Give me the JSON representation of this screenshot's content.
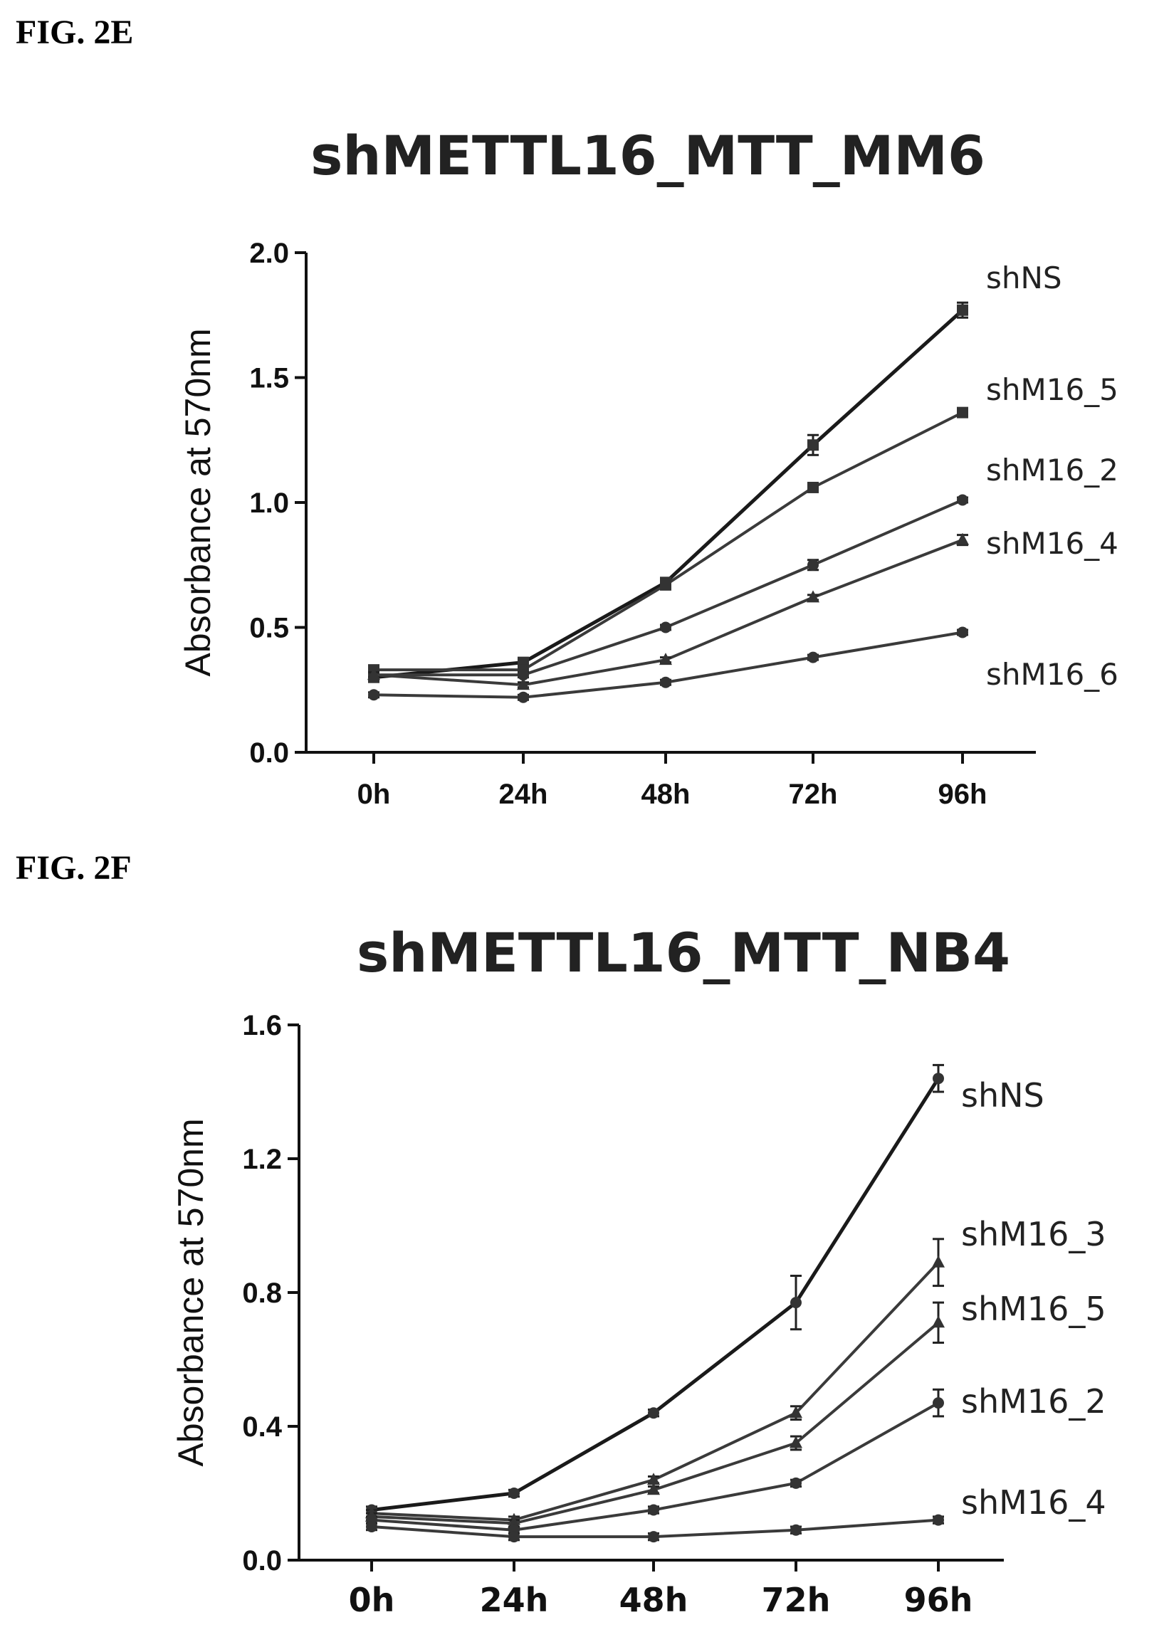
{
  "figures": [
    {
      "label": "FIG. 2E"
    },
    {
      "label": "FIG. 2F"
    }
  ],
  "chart_data": [
    {
      "type": "line",
      "title": "shMETTL16_MTT_MM6",
      "xlabel": "",
      "ylabel": "Absorbance at 570nm",
      "categories": [
        "0h",
        "24h",
        "48h",
        "72h",
        "96h"
      ],
      "ylim": [
        0,
        2.0
      ],
      "yticks": [
        "0.0",
        "0.5",
        "1.0",
        "1.5",
        "2.0"
      ],
      "grid": false,
      "legend": "direct labels at line ends",
      "series": [
        {
          "name": "shNS",
          "values": [
            0.3,
            0.36,
            0.68,
            1.23,
            1.77
          ],
          "err": [
            0.01,
            0.01,
            0.01,
            0.04,
            0.03
          ]
        },
        {
          "name": "shM16_5",
          "values": [
            0.33,
            0.33,
            0.67,
            1.06,
            1.36
          ],
          "err": [
            0.01,
            0.01,
            0.01,
            0.01,
            0.01
          ]
        },
        {
          "name": "shM16_2",
          "values": [
            0.31,
            0.31,
            0.5,
            0.75,
            1.01
          ],
          "err": [
            0.01,
            0.01,
            0.01,
            0.02,
            0.01
          ]
        },
        {
          "name": "shM16_4",
          "values": [
            0.31,
            0.27,
            0.37,
            0.62,
            0.85
          ],
          "err": [
            0.01,
            0.01,
            0.01,
            0.01,
            0.02
          ]
        },
        {
          "name": "shM16_6",
          "values": [
            0.23,
            0.22,
            0.28,
            0.38,
            0.48
          ],
          "err": [
            0.01,
            0.01,
            0.01,
            0.01,
            0.01
          ]
        }
      ]
    },
    {
      "type": "line",
      "title": "shMETTL16_MTT_NB4",
      "xlabel": "",
      "ylabel": "Absorbance at 570nm",
      "categories": [
        "0h",
        "24h",
        "48h",
        "72h",
        "96h"
      ],
      "ylim": [
        0,
        1.6
      ],
      "yticks": [
        "0.0",
        "0.4",
        "0.8",
        "1.2",
        "1.6"
      ],
      "grid": false,
      "legend": "direct labels at line ends",
      "series": [
        {
          "name": "shNS",
          "values": [
            0.15,
            0.2,
            0.44,
            0.77,
            1.44
          ],
          "err": [
            0.01,
            0.01,
            0.01,
            0.08,
            0.04
          ]
        },
        {
          "name": "shM16_3",
          "values": [
            0.14,
            0.12,
            0.24,
            0.44,
            0.89
          ],
          "err": [
            0.01,
            0.01,
            0.01,
            0.02,
            0.07
          ]
        },
        {
          "name": "shM16_5",
          "values": [
            0.13,
            0.11,
            0.21,
            0.35,
            0.71
          ],
          "err": [
            0.01,
            0.01,
            0.01,
            0.02,
            0.06
          ]
        },
        {
          "name": "shM16_2",
          "values": [
            0.12,
            0.09,
            0.15,
            0.23,
            0.47
          ],
          "err": [
            0.01,
            0.01,
            0.01,
            0.01,
            0.04
          ]
        },
        {
          "name": "shM16_4",
          "values": [
            0.1,
            0.07,
            0.07,
            0.09,
            0.12
          ],
          "err": [
            0.01,
            0.01,
            0.01,
            0.01,
            0.01
          ]
        }
      ]
    }
  ]
}
